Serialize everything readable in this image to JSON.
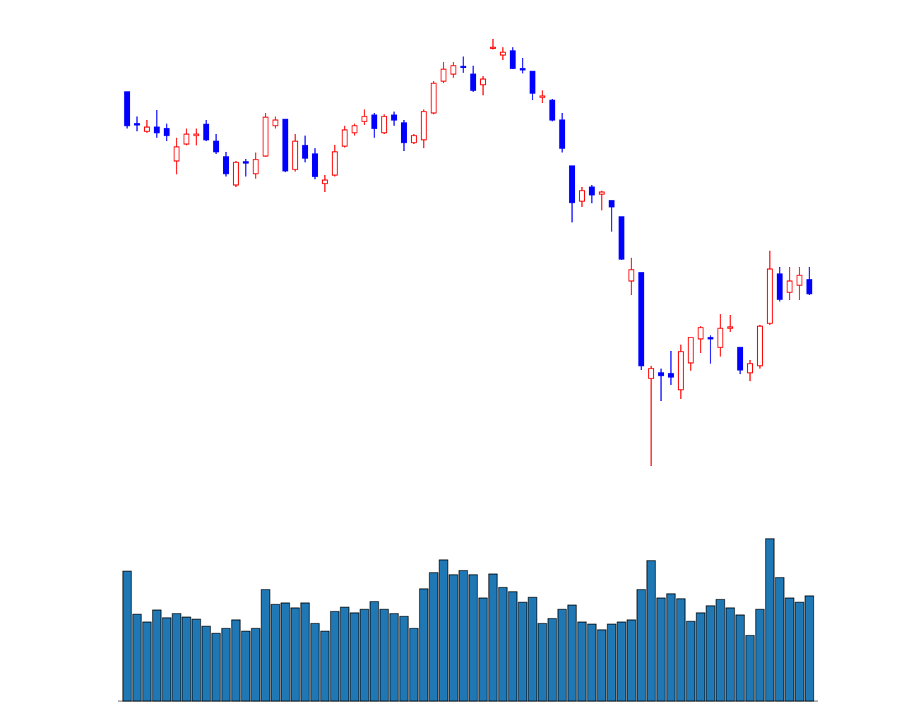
{
  "chart_data": [
    {
      "type": "candlestick",
      "up_color": "#ff0000",
      "down_color": "#0000ff",
      "ylim": [
        0,
        610
      ],
      "open": [
        530,
        485,
        474,
        480,
        478,
        432,
        456,
        468,
        484,
        460,
        438,
        398,
        431,
        414,
        439,
        482,
        491,
        420,
        454,
        442,
        400,
        412,
        453,
        472,
        488,
        497,
        472,
        497,
        486,
        458,
        462,
        500,
        545,
        555,
        566,
        555,
        540,
        592,
        582,
        588,
        563,
        559,
        522,
        518,
        490,
        425,
        375,
        395,
        385,
        376,
        353,
        262,
        274,
        124,
        132,
        131,
        108,
        146,
        180,
        182,
        168,
        195,
        168,
        132,
        142,
        202,
        272,
        246,
        256,
        264
      ],
      "high": [
        530,
        495,
        490,
        504,
        485,
        465,
        478,
        478,
        490,
        470,
        445,
        432,
        435,
        444,
        500,
        495,
        491,
        470,
        468,
        450,
        412,
        455,
        482,
        485,
        505,
        500,
        498,
        502,
        490,
        470,
        505,
        545,
        572,
        572,
        580,
        567,
        552,
        605,
        593,
        593,
        578,
        559,
        532,
        520,
        500,
        425,
        395,
        398,
        390,
        376,
        353,
        295,
        274,
        142,
        138,
        163,
        172,
        182,
        198,
        185,
        215,
        214,
        168,
        150,
        200,
        305,
        282,
        282,
        282,
        282
      ],
      "low": [
        478,
        474,
        472,
        465,
        460,
        413,
        454,
        454,
        460,
        442,
        410,
        395,
        410,
        407,
        438,
        478,
        416,
        417,
        430,
        406,
        388,
        410,
        451,
        468,
        483,
        465,
        470,
        482,
        446,
        456,
        450,
        498,
        542,
        550,
        557,
        530,
        525,
        590,
        575,
        562,
        556,
        518,
        514,
        488,
        444,
        345,
        367,
        372,
        362,
        332,
        292,
        242,
        136,
        0,
        92,
        115,
        95,
        135,
        160,
        145,
        155,
        190,
        130,
        120,
        138,
        200,
        233,
        235,
        235,
        242
      ],
      "close": [
        482,
        483,
        480,
        472,
        468,
        452,
        470,
        470,
        462,
        445,
        414,
        430,
        429,
        434,
        494,
        490,
        418,
        460,
        436,
        410,
        405,
        445,
        476,
        482,
        495,
        478,
        495,
        490,
        458,
        468,
        502,
        542,
        562,
        567,
        565,
        532,
        548,
        593,
        586,
        563,
        561,
        528,
        524,
        490,
        450,
        373,
        390,
        384,
        388,
        367,
        293,
        278,
        142,
        138,
        128,
        126,
        162,
        182,
        196,
        180,
        195,
        197,
        136,
        145,
        198,
        279,
        236,
        262,
        270,
        244
      ]
    },
    {
      "type": "bar",
      "color": "#1f77b4",
      "ylim": [
        0,
        240
      ],
      "values": [
        184,
        123,
        112,
        129,
        118,
        124,
        119,
        116,
        106,
        96,
        103,
        115,
        99,
        103,
        158,
        137,
        139,
        132,
        139,
        110,
        99,
        127,
        133,
        125,
        130,
        141,
        130,
        124,
        120,
        103,
        159,
        182,
        200,
        179,
        185,
        179,
        146,
        180,
        161,
        155,
        140,
        147,
        110,
        117,
        130,
        136,
        112,
        109,
        101,
        109,
        112,
        115,
        158,
        199,
        146,
        152,
        145,
        113,
        125,
        135,
        144,
        132,
        122,
        93,
        130,
        230,
        175,
        146,
        140,
        149
      ]
    }
  ]
}
